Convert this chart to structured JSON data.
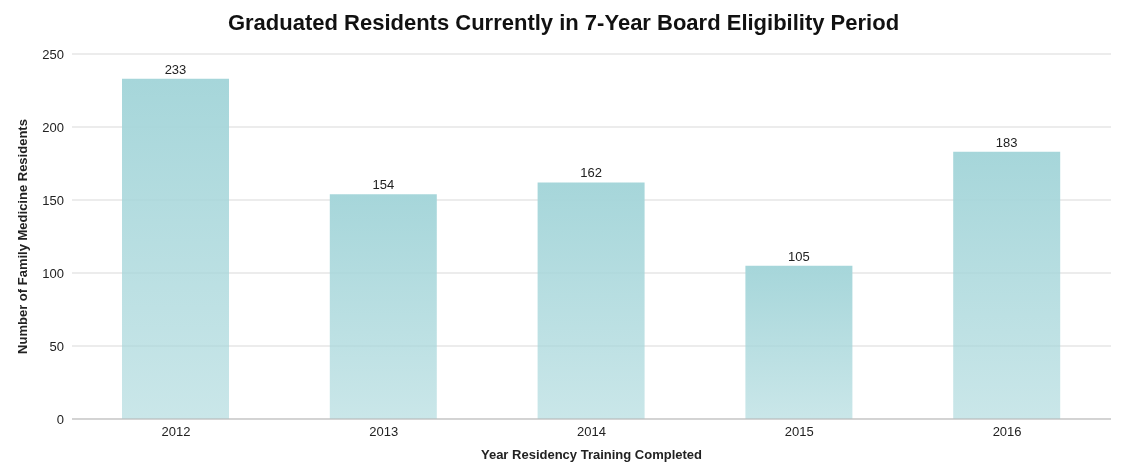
{
  "chart_data": {
    "type": "bar",
    "title": "Graduated Residents Currently in 7-Year Board Eligibility Period",
    "xlabel": "Year Residency Training Completed",
    "ylabel": "Number of Family Medicine Residents",
    "categories": [
      "2012",
      "2013",
      "2014",
      "2015",
      "2016"
    ],
    "values": [
      233,
      154,
      162,
      105,
      183
    ],
    "color": "#a6d6da",
    "ylim": [
      0,
      250
    ],
    "yticks": [
      0,
      50,
      100,
      150,
      200,
      250
    ],
    "grid": "y",
    "data_labels": true
  }
}
